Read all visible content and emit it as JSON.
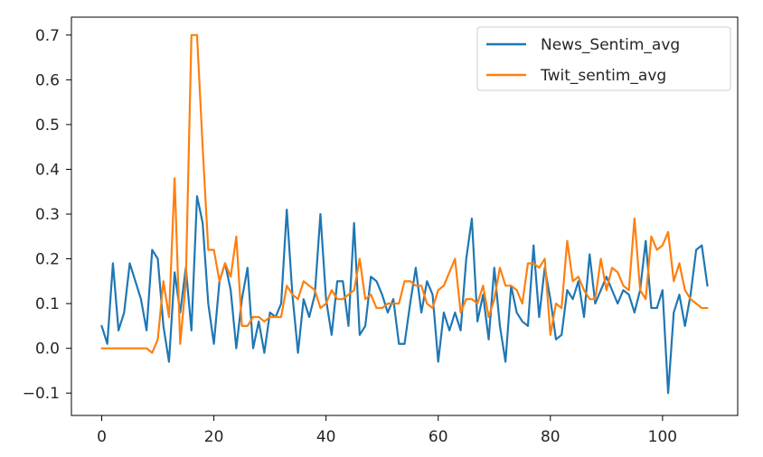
{
  "chart_data": {
    "type": "line",
    "title": "",
    "xlabel": "",
    "ylabel": "",
    "xlim": [
      -5.4,
      113.4
    ],
    "ylim": [
      -0.15,
      0.74
    ],
    "grid": false,
    "legend_position": "top-right",
    "x_ticks": [
      0,
      20,
      40,
      60,
      80,
      100
    ],
    "x_tick_labels": [
      "0",
      "20",
      "40",
      "60",
      "80",
      "100"
    ],
    "y_ticks": [
      -0.1,
      0.0,
      0.1,
      0.2,
      0.3,
      0.4,
      0.5,
      0.6,
      0.7
    ],
    "y_tick_labels": [
      "−0.1",
      "0.0",
      "0.1",
      "0.2",
      "0.3",
      "0.4",
      "0.5",
      "0.6",
      "0.7"
    ],
    "x": [
      0,
      1,
      2,
      3,
      4,
      5,
      6,
      7,
      8,
      9,
      10,
      11,
      12,
      13,
      14,
      15,
      16,
      17,
      18,
      19,
      20,
      21,
      22,
      23,
      24,
      25,
      26,
      27,
      28,
      29,
      30,
      31,
      32,
      33,
      34,
      35,
      36,
      37,
      38,
      39,
      40,
      41,
      42,
      43,
      44,
      45,
      46,
      47,
      48,
      49,
      50,
      51,
      52,
      53,
      54,
      55,
      56,
      57,
      58,
      59,
      60,
      61,
      62,
      63,
      64,
      65,
      66,
      67,
      68,
      69,
      70,
      71,
      72,
      73,
      74,
      75,
      76,
      77,
      78,
      79,
      80,
      81,
      82,
      83,
      84,
      85,
      86,
      87,
      88,
      89,
      90,
      91,
      92,
      93,
      94,
      95,
      96,
      97,
      98,
      99,
      100,
      101,
      102,
      103,
      104,
      105,
      106,
      107,
      108
    ],
    "series": [
      {
        "name": "News_Sentim_avg",
        "color": "#1f77b4",
        "values": [
          0.05,
          0.01,
          0.19,
          0.04,
          0.08,
          0.19,
          0.15,
          0.11,
          0.04,
          0.22,
          0.2,
          0.05,
          -0.03,
          0.17,
          0.08,
          0.18,
          0.04,
          0.34,
          0.28,
          0.1,
          0.01,
          0.15,
          0.19,
          0.13,
          0.0,
          0.11,
          0.18,
          0.0,
          0.06,
          -0.01,
          0.08,
          0.07,
          0.1,
          0.31,
          0.12,
          -0.01,
          0.11,
          0.07,
          0.12,
          0.3,
          0.11,
          0.03,
          0.15,
          0.15,
          0.05,
          0.28,
          0.03,
          0.05,
          0.16,
          0.15,
          0.12,
          0.08,
          0.11,
          0.01,
          0.01,
          0.1,
          0.18,
          0.08,
          0.15,
          0.12,
          -0.03,
          0.08,
          0.04,
          0.08,
          0.04,
          0.2,
          0.29,
          0.06,
          0.12,
          0.02,
          0.18,
          0.05,
          -0.03,
          0.14,
          0.08,
          0.06,
          0.05,
          0.23,
          0.07,
          0.18,
          0.11,
          0.02,
          0.03,
          0.13,
          0.11,
          0.15,
          0.07,
          0.21,
          0.1,
          0.13,
          0.16,
          0.13,
          0.1,
          0.13,
          0.12,
          0.08,
          0.13,
          0.24,
          0.09,
          0.09,
          0.13,
          -0.1,
          0.08,
          0.12,
          0.05,
          0.12,
          0.22,
          0.23,
          0.14
        ]
      },
      {
        "name": "Twit_sentim_avg",
        "color": "#ff7f0e",
        "values": [
          0.0,
          0.0,
          0.0,
          0.0,
          0.0,
          0.0,
          0.0,
          0.0,
          0.0,
          -0.01,
          0.02,
          0.15,
          0.07,
          0.38,
          0.01,
          0.15,
          0.7,
          0.7,
          0.45,
          0.22,
          0.22,
          0.15,
          0.19,
          0.16,
          0.25,
          0.05,
          0.05,
          0.07,
          0.07,
          0.06,
          0.07,
          0.07,
          0.07,
          0.14,
          0.12,
          0.11,
          0.15,
          0.14,
          0.13,
          0.09,
          0.1,
          0.13,
          0.11,
          0.11,
          0.12,
          0.13,
          0.2,
          0.11,
          0.12,
          0.09,
          0.09,
          0.1,
          0.1,
          0.1,
          0.15,
          0.15,
          0.14,
          0.14,
          0.1,
          0.09,
          0.13,
          0.14,
          0.17,
          0.2,
          0.08,
          0.11,
          0.11,
          0.1,
          0.14,
          0.07,
          0.11,
          0.18,
          0.14,
          0.14,
          0.13,
          0.1,
          0.19,
          0.19,
          0.18,
          0.2,
          0.03,
          0.1,
          0.09,
          0.24,
          0.15,
          0.16,
          0.13,
          0.11,
          0.11,
          0.2,
          0.13,
          0.18,
          0.17,
          0.14,
          0.13,
          0.29,
          0.13,
          0.11,
          0.25,
          0.22,
          0.23,
          0.26,
          0.15,
          0.19,
          0.13,
          0.11,
          0.1,
          0.09,
          0.09
        ]
      }
    ]
  }
}
